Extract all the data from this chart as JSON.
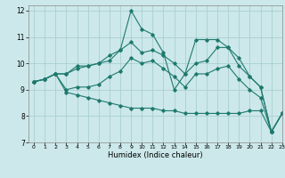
{
  "xlabel": "Humidex (Indice chaleur)",
  "xlim": [
    -0.5,
    23
  ],
  "ylim": [
    7,
    12.2
  ],
  "yticks": [
    7,
    8,
    9,
    10,
    11,
    12
  ],
  "xticks": [
    0,
    1,
    2,
    3,
    4,
    5,
    6,
    7,
    8,
    9,
    10,
    11,
    12,
    13,
    14,
    15,
    16,
    17,
    18,
    19,
    20,
    21,
    22,
    23
  ],
  "bg_color": "#cce8ea",
  "grid_color": "#aacfcf",
  "line_color": "#1e7a6e",
  "lines": [
    [
      9.3,
      9.4,
      9.6,
      9.6,
      9.8,
      9.9,
      10.0,
      10.3,
      10.5,
      12.0,
      11.3,
      11.1,
      10.4,
      9.0,
      9.6,
      10.9,
      10.9,
      10.9,
      10.6,
      10.2,
      9.5,
      9.1,
      7.4,
      8.1
    ],
    [
      9.3,
      9.4,
      9.6,
      9.6,
      9.9,
      9.9,
      10.0,
      10.1,
      10.5,
      10.8,
      10.4,
      10.5,
      10.3,
      10.0,
      9.6,
      10.0,
      10.1,
      10.6,
      10.6,
      9.9,
      9.5,
      9.1,
      7.4,
      8.1
    ],
    [
      9.3,
      9.4,
      9.6,
      9.0,
      9.1,
      9.1,
      9.2,
      9.5,
      9.7,
      10.2,
      10.0,
      10.1,
      9.8,
      9.5,
      9.1,
      9.6,
      9.6,
      9.8,
      9.9,
      9.4,
      9.0,
      8.7,
      7.4,
      8.1
    ],
    [
      9.3,
      9.4,
      9.6,
      8.9,
      8.8,
      8.7,
      8.6,
      8.5,
      8.4,
      8.3,
      8.3,
      8.3,
      8.2,
      8.2,
      8.1,
      8.1,
      8.1,
      8.1,
      8.1,
      8.1,
      8.2,
      8.2,
      7.4,
      8.1
    ]
  ]
}
